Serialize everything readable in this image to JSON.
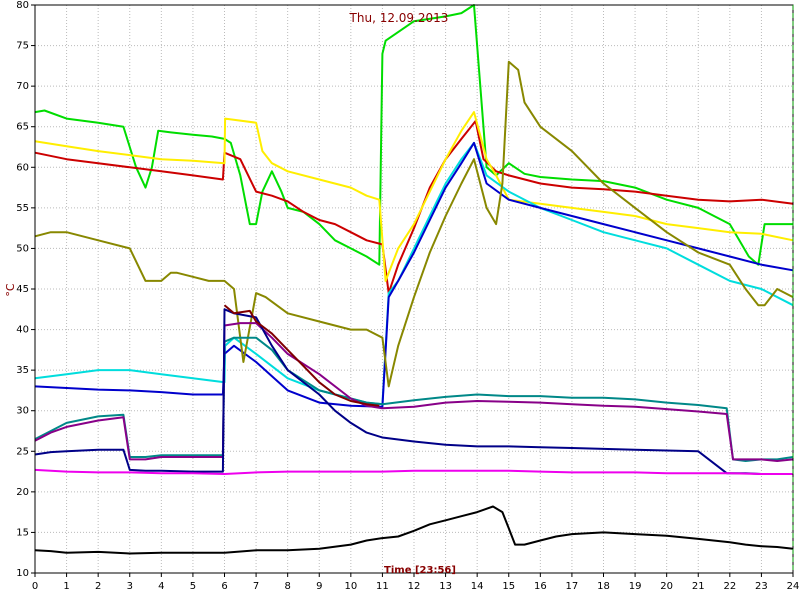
{
  "chart_data": {
    "type": "line",
    "title": "Thu, 12.09.2013",
    "xlabel": "Time [23:56]",
    "ylabel": "°C",
    "xlim": [
      0,
      24
    ],
    "ylim": [
      10,
      80
    ],
    "x_ticks": [
      0,
      1,
      2,
      3,
      4,
      5,
      6,
      7,
      8,
      9,
      10,
      11,
      12,
      13,
      14,
      15,
      16,
      17,
      18,
      19,
      20,
      21,
      22,
      23,
      24
    ],
    "y_ticks": [
      10,
      15,
      20,
      25,
      30,
      35,
      40,
      45,
      50,
      55,
      60,
      65,
      70,
      75,
      80
    ],
    "grid": true,
    "series": [
      {
        "color": "#00dd00",
        "x": [
          0,
          0.3,
          1,
          2,
          2.8,
          3.2,
          3.5,
          3.7,
          3.9,
          4.3,
          5,
          5.6,
          6,
          6.2,
          6.5,
          6.8,
          7,
          7.2,
          7.5,
          7.8,
          8,
          8.5,
          9,
          9.5,
          10,
          10.5,
          10.9,
          11.0,
          11.1,
          12,
          13,
          13.5,
          13.9,
          14.3,
          14.6,
          15,
          15.5,
          16,
          17,
          18,
          19,
          20,
          21,
          21.5,
          22,
          22.3,
          22.6,
          22.9,
          23.1,
          23.3,
          24
        ],
        "y": [
          66.8,
          67,
          66,
          65.5,
          65,
          60,
          57.5,
          60,
          64.5,
          64.3,
          64,
          63.8,
          63.5,
          63,
          59,
          53,
          53,
          57,
          59.5,
          57,
          55,
          54.5,
          53,
          51,
          50,
          49,
          48,
          74,
          75.6,
          78,
          78.6,
          79,
          80,
          60,
          59,
          60.5,
          59.2,
          58.8,
          58.5,
          58.3,
          57.5,
          56,
          55,
          54,
          53,
          51,
          49,
          48,
          53,
          53,
          53
        ]
      },
      {
        "color": "#cc0000",
        "x": [
          0,
          1,
          2,
          3,
          4,
          5,
          5.95,
          6.0,
          6.5,
          7,
          7.5,
          8,
          8.5,
          9,
          9.5,
          10,
          10.5,
          11,
          11.2,
          11.5,
          12,
          12.5,
          13,
          13.5,
          13.95,
          14.2,
          14.6,
          15,
          16,
          17,
          18,
          19,
          20,
          21,
          22,
          23,
          24
        ],
        "y": [
          61.8,
          61,
          60.5,
          60,
          59.5,
          59,
          58.5,
          61.8,
          61,
          57,
          56.5,
          55.8,
          54.5,
          53.5,
          53,
          52,
          51,
          50.5,
          44.5,
          48,
          52.5,
          57.5,
          61,
          63.5,
          65.7,
          61,
          59.5,
          59,
          58,
          57.5,
          57.3,
          57,
          56.5,
          56,
          55.8,
          56,
          55.5
        ]
      },
      {
        "color": "#ffee00",
        "x": [
          0,
          1,
          2,
          3,
          4,
          5,
          6,
          6.02,
          7,
          7.2,
          7.5,
          8,
          9,
          10,
          10.5,
          10.9,
          11.1,
          11.5,
          12,
          12.5,
          13,
          13.5,
          13.9,
          14.3,
          14.6,
          15,
          16,
          17,
          18,
          19,
          20,
          21,
          22,
          23,
          24
        ],
        "y": [
          63.2,
          62.6,
          62,
          61.5,
          61,
          60.8,
          60.5,
          66,
          65.5,
          62,
          60.5,
          59.5,
          58.5,
          57.5,
          56.5,
          56,
          46,
          50,
          53,
          57,
          61,
          64.5,
          66.8,
          61,
          59,
          56,
          55.5,
          55,
          54.5,
          54,
          53,
          52.5,
          52,
          51.8,
          51
        ]
      },
      {
        "color": "#00dddd",
        "x": [
          0,
          1,
          2,
          3,
          4,
          5,
          6,
          6.02,
          6.3,
          7,
          8,
          9,
          10,
          10.5,
          11,
          11.2,
          11.5,
          12,
          12.5,
          13,
          13.5,
          13.9,
          14.3,
          15,
          16,
          17,
          18,
          19,
          20,
          21,
          22,
          23,
          24
        ],
        "y": [
          34,
          34.5,
          35,
          35,
          34.5,
          34,
          33.5,
          38,
          39,
          37,
          34,
          32.5,
          31.5,
          31,
          30.8,
          44.5,
          46,
          50,
          54,
          58,
          61,
          63,
          59,
          57,
          55,
          53.5,
          52,
          51,
          50,
          48,
          46,
          45,
          43
        ]
      },
      {
        "color": "#0000cc",
        "x": [
          0,
          1,
          2,
          3,
          4,
          5,
          5.95,
          6.0,
          6.3,
          7,
          8,
          9,
          10,
          11,
          11.2,
          11.5,
          12,
          12.5,
          13,
          13.5,
          13.9,
          14.3,
          15,
          16,
          17,
          18,
          19,
          20,
          21,
          22,
          23,
          24
        ],
        "y": [
          33,
          32.8,
          32.6,
          32.5,
          32.3,
          32,
          32,
          37,
          38,
          36,
          32.5,
          31,
          30.6,
          30.5,
          44,
          46,
          49.5,
          53.5,
          57.5,
          60.5,
          63,
          58,
          56,
          55,
          54,
          53,
          52,
          51,
          50,
          49,
          48,
          47.3
        ]
      },
      {
        "color": "#888800",
        "x": [
          0,
          0.5,
          1,
          2,
          3,
          3.5,
          3.8,
          4,
          4.3,
          4.5,
          5,
          5.5,
          6,
          6.3,
          6.6,
          7,
          7.3,
          8,
          9,
          10,
          10.5,
          11,
          11.2,
          11.5,
          12,
          12.5,
          13,
          13.5,
          13.9,
          14.3,
          14.6,
          14.8,
          15,
          15.3,
          15.5,
          16,
          17,
          18,
          19,
          20,
          21,
          22,
          22.5,
          22.9,
          23.1,
          23.5,
          24
        ],
        "y": [
          51.5,
          52,
          52,
          51,
          50,
          46,
          46,
          46,
          47,
          47,
          46.5,
          46,
          46,
          45,
          36,
          44.5,
          44,
          42,
          41,
          40,
          40,
          39,
          33,
          38,
          44,
          49.5,
          54,
          58,
          61,
          55,
          53,
          58,
          73,
          72,
          68,
          65,
          62,
          58,
          55,
          52,
          49.5,
          48,
          45,
          43,
          43,
          45,
          44
        ]
      },
      {
        "color": "#008888",
        "x": [
          0,
          0.5,
          1,
          2,
          2.8,
          3,
          3.5,
          4,
          5,
          5.95,
          6.0,
          6.3,
          7,
          7.5,
          8,
          9,
          10,
          10.5,
          11,
          12,
          13,
          14,
          15,
          16,
          17,
          18,
          19,
          20,
          21,
          21.9,
          22.1,
          22.5,
          23,
          23.5,
          24
        ],
        "y": [
          26.5,
          27.5,
          28.5,
          29.3,
          29.5,
          24.3,
          24.3,
          24.5,
          24.5,
          24.5,
          38.5,
          39,
          39,
          37.5,
          35,
          32.5,
          31.5,
          31,
          30.8,
          31.3,
          31.7,
          32,
          31.8,
          31.8,
          31.6,
          31.6,
          31.4,
          31,
          30.7,
          30.3,
          24,
          23.8,
          24,
          24,
          24.3
        ]
      },
      {
        "color": "#880088",
        "x": [
          0,
          0.5,
          1,
          2,
          2.8,
          3,
          3.5,
          4,
          5,
          5.95,
          6.0,
          6.5,
          7,
          7.5,
          8,
          9,
          10,
          10.5,
          11,
          12,
          13,
          14,
          15,
          16,
          17,
          18,
          19,
          20,
          21,
          21.9,
          22.1,
          22.5,
          23,
          23.5,
          24
        ],
        "y": [
          26.3,
          27.3,
          28,
          28.8,
          29.2,
          24,
          24,
          24.3,
          24.3,
          24.3,
          40.5,
          40.8,
          40.8,
          39,
          37,
          34.5,
          31.5,
          30.6,
          30.3,
          30.5,
          31,
          31.2,
          31.1,
          31,
          30.8,
          30.6,
          30.5,
          30.2,
          29.9,
          29.6,
          24,
          24,
          24,
          23.8,
          24
        ]
      },
      {
        "color": "#000088",
        "x": [
          0,
          0.5,
          1,
          2,
          2.8,
          3,
          3.5,
          4,
          5,
          5.95,
          6.0,
          6.3,
          7,
          7.5,
          8,
          9,
          9.5,
          10,
          10.5,
          11,
          12,
          13,
          14,
          15,
          16,
          17,
          18,
          19,
          20,
          21,
          21.9,
          22.1,
          22.5,
          23,
          24
        ],
        "y": [
          24.6,
          24.9,
          25,
          25.2,
          25.2,
          22.7,
          22.6,
          22.6,
          22.5,
          22.5,
          42.5,
          42,
          41.5,
          38,
          35,
          32,
          30,
          28.5,
          27.3,
          26.7,
          26.2,
          25.8,
          25.6,
          25.6,
          25.5,
          25.4,
          25.3,
          25.2,
          25.1,
          25.0,
          22.3,
          22.3,
          22.3,
          22.2,
          22.2
        ]
      },
      {
        "color": "#800000",
        "x": [
          6.0,
          6.3,
          6.8,
          7,
          7.5,
          8,
          8.5,
          9,
          9.5,
          10,
          10.5,
          10.9
        ],
        "y": [
          43,
          42,
          42.3,
          41,
          39.5,
          37.5,
          35.5,
          33.5,
          32,
          31.2,
          30.8,
          30.6
        ]
      },
      {
        "color": "#ee00ee",
        "x": [
          0,
          1,
          2,
          3,
          4,
          5,
          6,
          7,
          8,
          9,
          10,
          11,
          12,
          13,
          14,
          15,
          16,
          17,
          18,
          19,
          20,
          21,
          22,
          23,
          24
        ],
        "y": [
          22.7,
          22.5,
          22.4,
          22.4,
          22.3,
          22.3,
          22.2,
          22.4,
          22.5,
          22.5,
          22.5,
          22.5,
          22.6,
          22.6,
          22.6,
          22.6,
          22.5,
          22.4,
          22.4,
          22.4,
          22.3,
          22.3,
          22.3,
          22.2,
          22.2
        ]
      },
      {
        "color": "#000000",
        "x": [
          0,
          0.5,
          1,
          2,
          3,
          4,
          5,
          6,
          7,
          8,
          9,
          10,
          10.5,
          11,
          11.5,
          12,
          12.5,
          13,
          13.5,
          14,
          14.5,
          14.8,
          15,
          15.2,
          15.5,
          16,
          16.5,
          17,
          18,
          19,
          20,
          21,
          22,
          22.5,
          23,
          23.5,
          24
        ],
        "y": [
          12.8,
          12.7,
          12.5,
          12.6,
          12.4,
          12.5,
          12.5,
          12.5,
          12.8,
          12.8,
          13.0,
          13.5,
          14,
          14.3,
          14.5,
          15.2,
          16,
          16.5,
          17,
          17.5,
          18.2,
          17.5,
          15.5,
          13.5,
          13.5,
          14,
          14.5,
          14.8,
          15,
          14.8,
          14.6,
          14.2,
          13.8,
          13.5,
          13.3,
          13.2,
          13
        ]
      }
    ]
  }
}
